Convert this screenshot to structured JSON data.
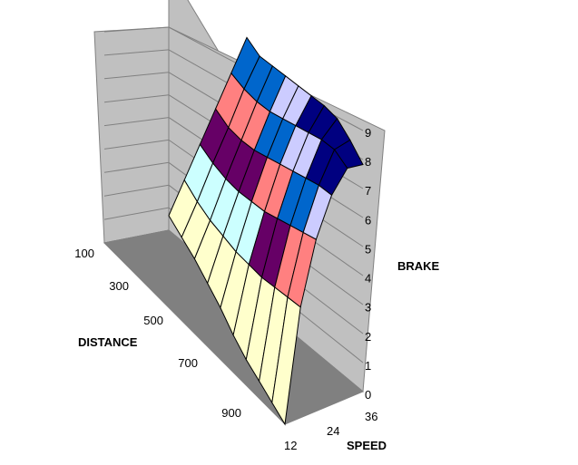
{
  "chart_data": {
    "type": "surface",
    "view": "3d",
    "axes": {
      "distance": {
        "label": "DISTANCE",
        "tick_labels": [
          "100",
          "300",
          "500",
          "700",
          "900"
        ],
        "values": [
          100,
          200,
          300,
          400,
          500,
          600,
          700,
          800,
          900,
          1000
        ]
      },
      "speed": {
        "label": "SPEED",
        "tick_labels": [
          "12",
          "24",
          "36"
        ],
        "values": [
          12,
          18,
          24,
          30,
          36,
          42
        ]
      },
      "brake": {
        "label": "BRAKE",
        "tick_labels": [
          "0",
          "1",
          "2",
          "3",
          "4",
          "5",
          "6",
          "7",
          "8",
          "9"
        ],
        "range": [
          0,
          9
        ]
      }
    },
    "bands": [
      {
        "min": 0,
        "max": 1,
        "color": "#993366"
      },
      {
        "min": 1,
        "max": 2,
        "color": "#FFFFCC"
      },
      {
        "min": 2,
        "max": 3,
        "color": "#CCFFFF"
      },
      {
        "min": 3,
        "max": 4,
        "color": "#660066"
      },
      {
        "min": 4,
        "max": 5,
        "color": "#FF8080"
      },
      {
        "min": 5,
        "max": 6,
        "color": "#0066CC"
      },
      {
        "min": 6,
        "max": 7,
        "color": "#CCCCFF"
      },
      {
        "min": 7,
        "max": 8,
        "color": "#000080"
      }
    ],
    "z": [
      [
        0.5,
        1.5,
        2.5,
        3.5,
        4.5,
        5.5
      ],
      [
        0.5,
        1.5,
        2.6,
        3.6,
        4.7,
        5.6
      ],
      [
        0.5,
        1.6,
        2.8,
        3.9,
        5.0,
        6.0
      ],
      [
        0.4,
        1.8,
        3.1,
        4.3,
        5.4,
        6.4
      ],
      [
        0.3,
        2.0,
        3.5,
        4.8,
        5.9,
        6.8
      ],
      [
        0.1,
        2.3,
        3.9,
        5.3,
        6.4,
        7.2
      ],
      [
        0.0,
        2.6,
        4.4,
        5.8,
        6.9,
        7.6
      ],
      [
        0.0,
        3.0,
        4.9,
        6.3,
        7.4,
        7.9
      ],
      [
        0.0,
        3.4,
        5.4,
        6.8,
        7.8,
        7.9
      ],
      [
        0.0,
        3.8,
        5.9,
        7.2,
        7.9,
        7.8
      ]
    ],
    "grid": true,
    "colors": {
      "back_wall": "#C0C0C0",
      "side_wall": "#C0C0C0",
      "floor": "#808080",
      "edge": "#000000"
    }
  }
}
